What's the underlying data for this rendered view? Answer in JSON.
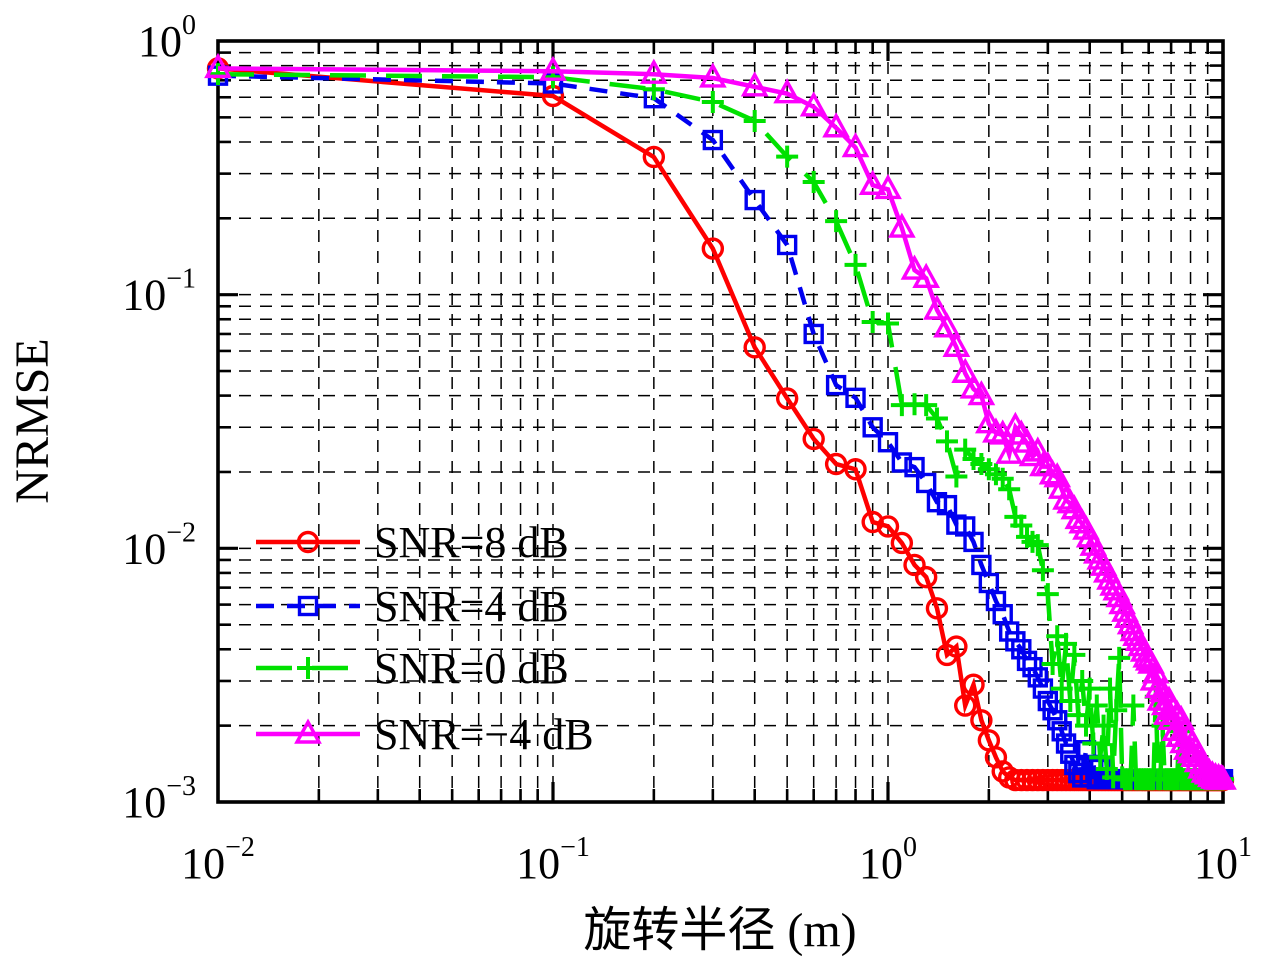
{
  "chart_data": {
    "type": "line",
    "title": "",
    "xlabel": "旋转半径 (m)",
    "ylabel": "NRMSE",
    "x_scale": "log",
    "y_scale": "log",
    "xlim": [
      0.01,
      10
    ],
    "ylim": [
      0.001,
      1
    ],
    "x_tick_exponents": [
      -2,
      -1,
      0,
      1
    ],
    "y_tick_exponents": [
      0,
      -1,
      -2,
      -3
    ],
    "grid": {
      "show": true,
      "minor": true,
      "style": "dashed",
      "color": "#000000"
    },
    "legend": {
      "frame": false,
      "location": "lower-left-inside"
    },
    "noise_floor": 0.0012,
    "x": [
      0.01,
      0.1,
      0.2,
      0.3,
      0.4,
      0.5,
      0.6,
      0.7,
      0.8,
      0.9,
      1.0,
      1.1,
      1.2,
      1.3,
      1.4,
      1.5,
      1.6,
      1.7,
      1.8,
      1.9,
      2.0,
      2.1,
      2.2,
      2.3,
      2.4,
      2.5,
      2.6,
      2.7,
      2.8,
      2.9,
      3.0,
      3.1,
      3.2,
      3.3,
      3.4,
      3.5,
      3.6,
      3.7,
      3.8,
      3.9,
      4.0,
      4.1,
      4.2,
      4.3,
      4.4,
      4.5,
      4.6,
      4.7,
      4.8,
      4.9,
      5.0,
      5.1,
      5.2,
      5.3,
      5.4,
      5.5,
      5.6,
      5.7,
      5.8,
      5.9,
      6.0,
      6.1,
      6.2,
      6.3,
      6.4,
      6.5,
      6.6,
      6.7,
      6.8,
      6.9,
      7.0,
      7.1,
      7.2,
      7.3,
      7.4,
      7.5,
      7.6,
      7.7,
      7.8,
      7.9,
      8.0,
      8.1,
      8.2,
      8.3,
      8.4,
      8.5,
      8.6,
      8.7,
      8.8,
      8.9,
      9.0,
      9.1,
      9.2,
      9.3,
      9.4,
      9.5,
      9.6,
      9.7,
      9.8,
      9.9,
      10.0
    ],
    "series": [
      {
        "key": "snr-8db",
        "name": "SNR=8 dB",
        "color": "#fe0000",
        "line": "solid",
        "marker": "circle",
        "y": [
          0.78,
          0.607,
          0.349,
          0.152,
          0.062,
          0.039,
          0.027,
          0.0215,
          0.0205,
          0.0127,
          0.0122,
          0.0105,
          0.0086,
          0.0077,
          0.0058,
          0.0038,
          0.0041,
          0.0024,
          0.0029,
          0.0021,
          0.00175,
          0.0015,
          0.00132,
          0.00125,
          0.00122,
          0.00122,
          0.00122,
          0.00122,
          0.00122,
          0.00122,
          0.00122,
          0.00122,
          0.00122,
          0.00122,
          0.00122,
          0.00122,
          0.00122,
          0.00122,
          0.00122,
          0.00122,
          0.00122,
          0.00122,
          0.00122,
          0.00122,
          0.00122,
          0.00122,
          0.00122,
          0.00122,
          0.00122,
          0.00122,
          0.00122,
          0.00122,
          0.00122,
          0.00122,
          0.00122,
          0.00122,
          0.00122,
          0.00122,
          0.00122,
          0.00122,
          0.00122,
          0.00122,
          0.00122,
          0.00122,
          0.00122,
          0.00122,
          0.00122,
          0.00122,
          0.00122,
          0.00122,
          0.00122,
          0.00122,
          0.00122,
          0.00122,
          0.00122,
          0.00122,
          0.00122,
          0.00122,
          0.00122,
          0.00122,
          0.00122,
          0.00122,
          0.00122,
          0.00122,
          0.00122,
          0.00122,
          0.00122,
          0.00122,
          0.00122,
          0.00122,
          0.00122,
          0.00122,
          0.00122,
          0.00122,
          0.00122,
          0.00122,
          0.00122,
          0.00122,
          0.00122,
          0.00122,
          0.00122
        ]
      },
      {
        "key": "snr-4db",
        "name": "SNR=4 dB",
        "color": "#0000f0",
        "line": "dashed",
        "marker": "square",
        "y": [
          0.73,
          0.68,
          0.595,
          0.407,
          0.236,
          0.157,
          0.07,
          0.044,
          0.0392,
          0.03,
          0.0262,
          0.0218,
          0.0209,
          0.0181,
          0.0152,
          0.0148,
          0.0124,
          0.0122,
          0.0106,
          0.0086,
          0.0073,
          0.0062,
          0.0055,
          0.0047,
          0.0043,
          0.004,
          0.0036,
          0.0034,
          0.0031,
          0.0028,
          0.0025,
          0.0023,
          0.0021,
          0.0019,
          0.0017,
          0.00155,
          0.0014,
          0.0013,
          0.00125,
          0.0016,
          0.00125,
          0.0014,
          0.00123,
          0.00135,
          0.00123,
          0.00123,
          0.00123,
          0.00123,
          0.00123,
          0.00123,
          0.00123,
          0.00123,
          0.00123,
          0.00123,
          0.00123,
          0.00123,
          0.00123,
          0.00123,
          0.00123,
          0.00123,
          0.00123,
          0.00123,
          0.00123,
          0.00123,
          0.00123,
          0.00123,
          0.00123,
          0.00123,
          0.00123,
          0.00123,
          0.00123,
          0.00123,
          0.00123,
          0.00123,
          0.00123,
          0.00123,
          0.00123,
          0.00123,
          0.00123,
          0.00123,
          0.00123,
          0.00123,
          0.00123,
          0.00123,
          0.00123,
          0.00123,
          0.00123,
          0.00123,
          0.00123,
          0.00123,
          0.00123,
          0.00123,
          0.00123,
          0.00123,
          0.00123,
          0.00123,
          0.00123,
          0.00123,
          0.00123,
          0.00123,
          0.00123
        ]
      },
      {
        "key": "snr-0db",
        "name": "SNR=0 dB",
        "color": "#00e100",
        "line": "long-dashed",
        "marker": "plus",
        "y": [
          0.74,
          0.72,
          0.645,
          0.575,
          0.484,
          0.35,
          0.278,
          0.195,
          0.131,
          0.078,
          0.077,
          0.0367,
          0.037,
          0.0367,
          0.0325,
          0.0264,
          0.0192,
          0.0245,
          0.0225,
          0.0215,
          0.0205,
          0.0196,
          0.0188,
          0.0171,
          0.0133,
          0.0123,
          0.0111,
          0.0106,
          0.0103,
          0.0082,
          0.0066,
          0.0035,
          0.0045,
          0.0028,
          0.0042,
          0.0025,
          0.0038,
          0.0022,
          0.003,
          0.002,
          0.0028,
          0.0017,
          0.0024,
          0.0015,
          0.002,
          0.00135,
          0.0028,
          0.00125,
          0.0023,
          0.0037,
          0.00125,
          0.00123,
          0.00123,
          0.00123,
          0.0024,
          0.00123,
          0.00123,
          0.00123,
          0.00123,
          0.00123,
          0.00123,
          0.00123,
          0.00123,
          0.0026,
          0.00123,
          0.00123,
          0.002,
          0.00123,
          0.00123,
          0.00123,
          0.00123,
          0.00123,
          0.00123,
          0.00123,
          0.0019,
          0.00123,
          0.00123,
          0.00123,
          0.00123,
          0.00123,
          0.00123,
          0.00123,
          0.00123,
          0.00123,
          0.00123,
          0.00123,
          0.00123,
          0.00123,
          0.00123,
          0.00123,
          0.00123,
          0.00123,
          0.00123,
          0.00123,
          0.00123,
          0.00123,
          0.00123,
          0.00123,
          0.00123,
          0.00123,
          0.00123
        ]
      },
      {
        "key": "snr-neg4db",
        "name": "SNR=−4 dB",
        "color": "#fd00fd",
        "line": "solid",
        "marker": "triangle",
        "y": [
          0.78,
          0.76,
          0.74,
          0.715,
          0.66,
          0.62,
          0.55,
          0.455,
          0.38,
          0.27,
          0.26,
          0.183,
          0.125,
          0.116,
          0.087,
          0.074,
          0.062,
          0.049,
          0.0425,
          0.04,
          0.031,
          0.0285,
          0.028,
          0.0235,
          0.03,
          0.028,
          0.026,
          0.023,
          0.024,
          0.021,
          0.021,
          0.0195,
          0.019,
          0.0171,
          0.0155,
          0.015,
          0.0142,
          0.013,
          0.0125,
          0.0118,
          0.011,
          0.0102,
          0.0095,
          0.009,
          0.0085,
          0.008,
          0.0075,
          0.0071,
          0.0068,
          0.0064,
          0.006,
          0.0056,
          0.0053,
          0.005,
          0.0047,
          0.0045,
          0.0043,
          0.0041,
          0.0039,
          0.0037,
          0.0036,
          0.0035,
          0.003,
          0.0032,
          0.0028,
          0.0025,
          0.0027,
          0.0024,
          0.0022,
          0.0025,
          0.0021,
          0.0023,
          0.0019,
          0.0022,
          0.0018,
          0.0021,
          0.0017,
          0.0019,
          0.0016,
          0.0018,
          0.00155,
          0.0017,
          0.0015,
          0.0016,
          0.00143,
          0.0015,
          0.00135,
          0.0014,
          0.0013,
          0.00135,
          0.00128,
          0.0013,
          0.00125,
          0.00127,
          0.00123,
          0.00125,
          0.00122,
          0.00124,
          0.00122,
          0.00123,
          0.00122
        ]
      }
    ]
  }
}
